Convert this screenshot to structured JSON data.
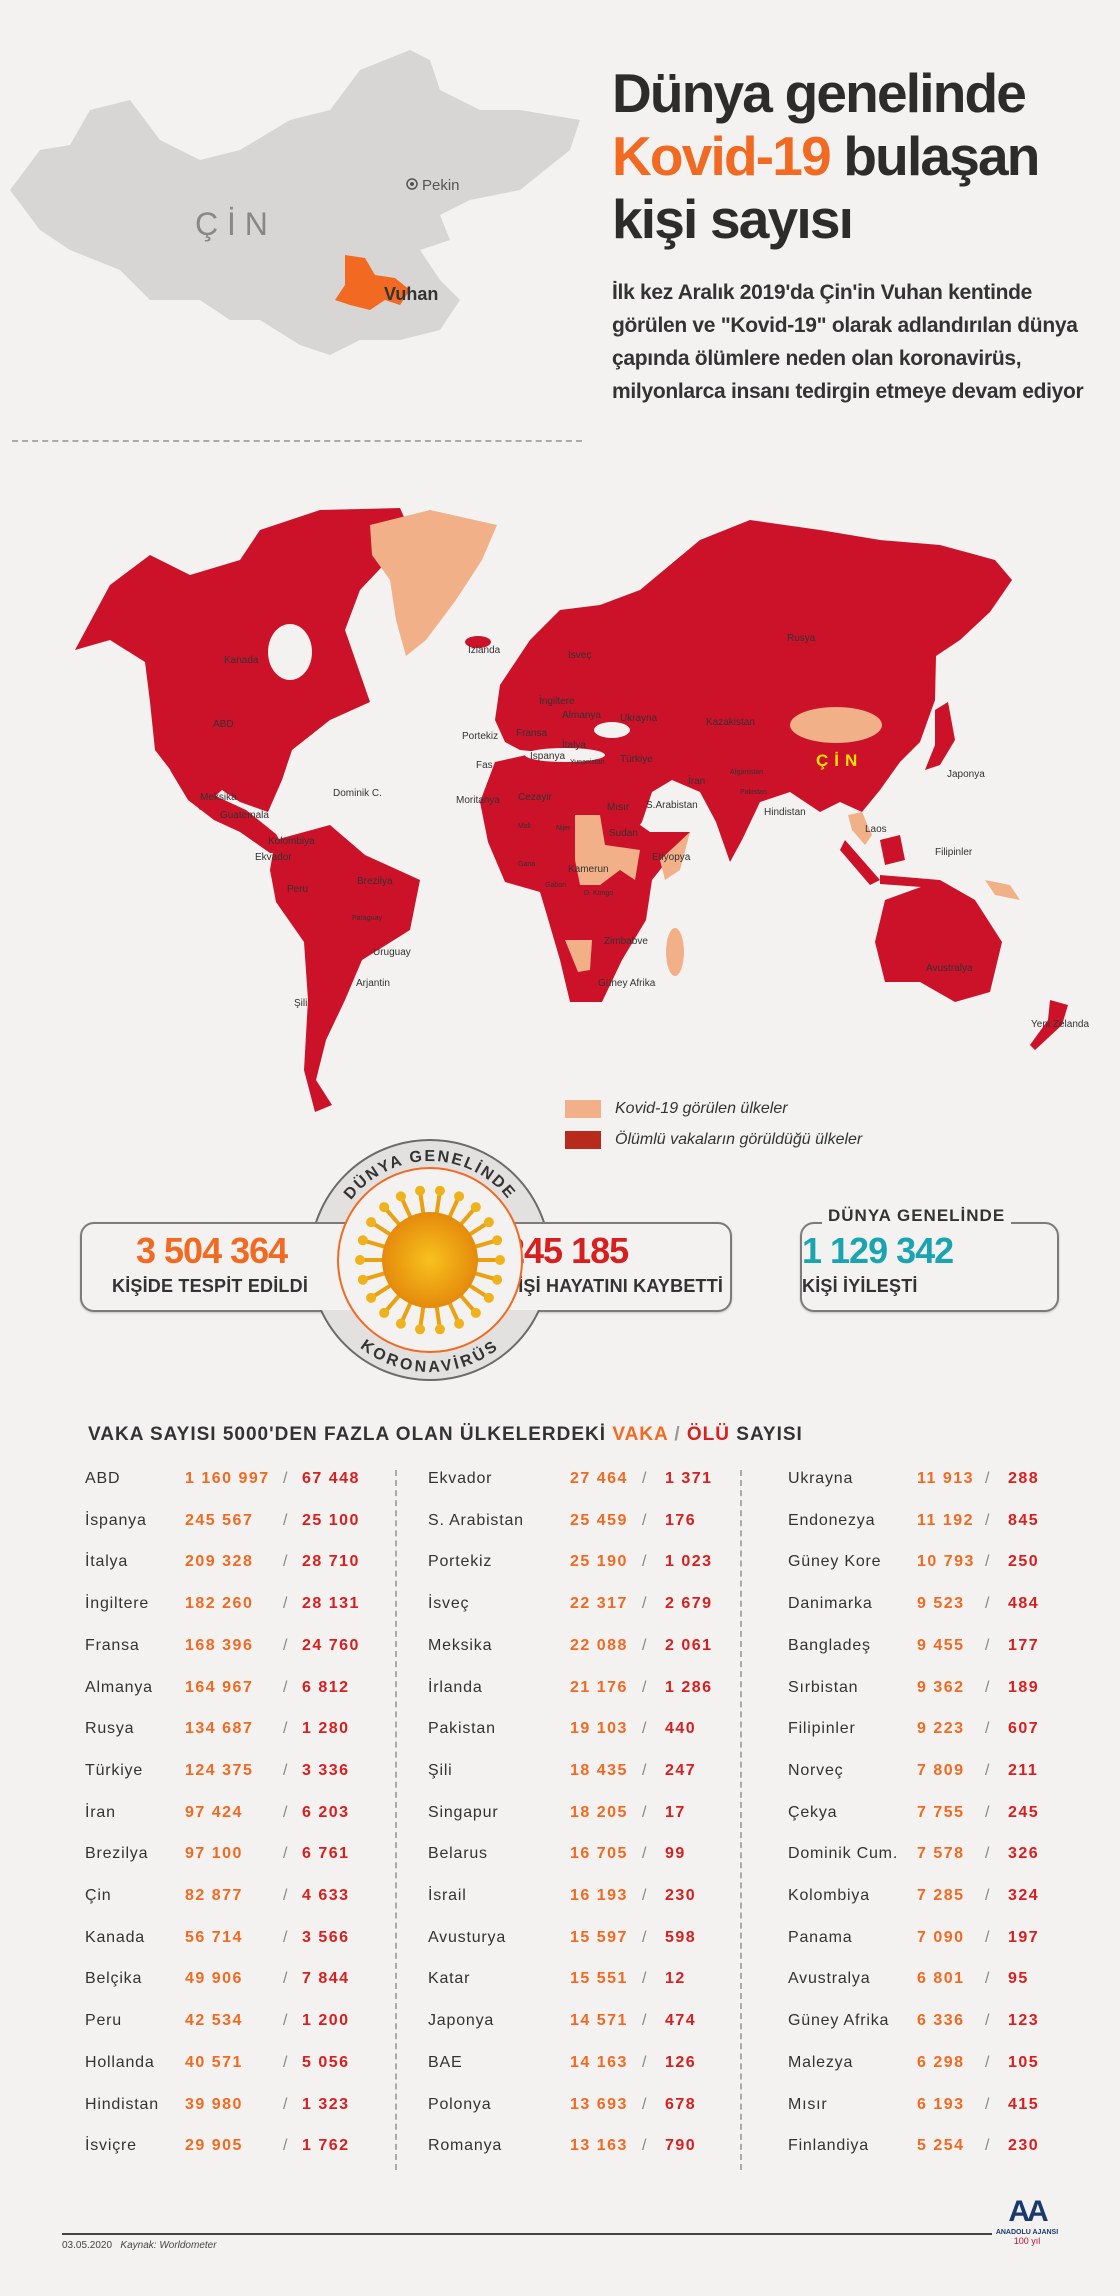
{
  "colors": {
    "death_country": "#cc1229",
    "case_country": "#f2b088",
    "accent_orange": "#f26a21",
    "death_red": "#d81f1f",
    "recovered_teal": "#1aa3b0",
    "china_gray": "#d8d6d4"
  },
  "china_map": {
    "country_label": "Ç İ N",
    "capital_label": "Pekin",
    "city_label": "Vuhan"
  },
  "header": {
    "title_line1": "Dünya genelinde",
    "title_highlight": "Kovid-19",
    "title_line2_rest": " bulaşan",
    "title_line3": "kişi sayısı",
    "intro": "İlk kez Aralık 2019'da Çin'in Vuhan kentinde görülen ve \"Kovid-19\" olarak adlandırılan dünya çapında ölümlere neden olan koronavirüs, milyonlarca insanı tedirgin etmeye devam ediyor"
  },
  "world_map": {
    "labels": [
      "Kanada",
      "ABD",
      "İzlanda",
      "Meksika",
      "Guatemala",
      "Dominik C.",
      "Kolombiya",
      "Ekvador",
      "Peru",
      "Brezilya",
      "Paraguay",
      "Uruguay",
      "Arjantin",
      "Şili",
      "Portekiz",
      "Fas",
      "Moritanya",
      "İngiltere",
      "Fransa",
      "İspanya",
      "Almanya",
      "İsveç",
      "Ukrayna",
      "İtalya",
      "Yunanistan",
      "Türkiye",
      "Cezayir",
      "Mısır",
      "Mali",
      "Nijer",
      "Sudan",
      "Etiyopya",
      "Gana",
      "Kamerun",
      "Gabon",
      "D. Kongo",
      "Zimbabve",
      "Güney Afrika",
      "Rusya",
      "Kazakistan",
      "İran",
      "S.Arabistan",
      "Afganistan",
      "Pakistan",
      "Hindistan",
      "ÇİN",
      "Japonya",
      "Laos",
      "Filipinler",
      "Avustralya",
      "Yeni Zelanda"
    ],
    "legend": [
      {
        "label": "Kovid-19 görülen ülkeler",
        "color": "#f2b088"
      },
      {
        "label": "Ölümlü vakaların görüldüğü ülkeler",
        "color": "#b82a1c"
      }
    ]
  },
  "stats": {
    "ring_top": "DÜNYA GENELİNDE",
    "ring_bottom": "KORONAVİRÜS",
    "cases": "3 504 364",
    "cases_label": "KİŞİDE TESPİT EDİLDİ",
    "deaths": "245 185",
    "deaths_label": "KİŞİ HAYATINI KAYBETTİ",
    "recovered_heading": "DÜNYA GENELİNDE",
    "recovered": "1 129 342",
    "recovered_label": "KİŞİ İYİLEŞTİ"
  },
  "table": {
    "heading_prefix": "VAKA SAYISI 5000'DEN FAZLA OLAN ÜLKELERDEKİ ",
    "heading_cases": "VAKA",
    "heading_sep": " / ",
    "heading_deaths": "ÖLÜ",
    "heading_suffix": " SAYISI",
    "columns": [
      [
        [
          "ABD",
          "1 160 997",
          "67 448"
        ],
        [
          "İspanya",
          "245 567",
          "25 100"
        ],
        [
          "İtalya",
          "209 328",
          "28 710"
        ],
        [
          "İngiltere",
          "182 260",
          "28 131"
        ],
        [
          "Fransa",
          "168 396",
          "24 760"
        ],
        [
          "Almanya",
          "164 967",
          "6 812"
        ],
        [
          "Rusya",
          "134 687",
          "1 280"
        ],
        [
          "Türkiye",
          "124 375",
          "3 336"
        ],
        [
          "İran",
          "97 424",
          "6 203"
        ],
        [
          "Brezilya",
          "97 100",
          "6 761"
        ],
        [
          "Çin",
          "82 877",
          "4 633"
        ],
        [
          "Kanada",
          "56 714",
          "3 566"
        ],
        [
          "Belçika",
          "49 906",
          "7 844"
        ],
        [
          "Peru",
          "42 534",
          "1 200"
        ],
        [
          "Hollanda",
          "40 571",
          "5 056"
        ],
        [
          "Hindistan",
          "39 980",
          "1 323"
        ],
        [
          "İsviçre",
          "29 905",
          "1 762"
        ]
      ],
      [
        [
          "Ekvador",
          "27 464",
          "1 371"
        ],
        [
          "S. Arabistan",
          "25 459",
          "176"
        ],
        [
          "Portekiz",
          "25 190",
          "1 023"
        ],
        [
          "İsveç",
          "22 317",
          "2 679"
        ],
        [
          "Meksika",
          "22 088",
          "2 061"
        ],
        [
          "İrlanda",
          "21 176",
          "1 286"
        ],
        [
          "Pakistan",
          "19 103",
          "440"
        ],
        [
          "Şili",
          "18 435",
          "247"
        ],
        [
          "Singapur",
          "18 205",
          "17"
        ],
        [
          "Belarus",
          "16 705",
          "99"
        ],
        [
          "İsrail",
          "16 193",
          "230"
        ],
        [
          "Avusturya",
          "15 597",
          "598"
        ],
        [
          "Katar",
          "15 551",
          "12"
        ],
        [
          "Japonya",
          "14 571",
          "474"
        ],
        [
          "BAE",
          "14 163",
          "126"
        ],
        [
          "Polonya",
          "13 693",
          "678"
        ],
        [
          "Romanya",
          "13 163",
          "790"
        ]
      ],
      [
        [
          "Ukrayna",
          "11 913",
          "288"
        ],
        [
          "Endonezya",
          "11 192",
          "845"
        ],
        [
          "Güney Kore",
          "10 793",
          "250"
        ],
        [
          "Danimarka",
          "9 523",
          "484"
        ],
        [
          "Bangladeş",
          "9 455",
          "177"
        ],
        [
          "Sırbistan",
          "9 362",
          "189"
        ],
        [
          "Filipinler",
          "9 223",
          "607"
        ],
        [
          "Norveç",
          "7 809",
          "211"
        ],
        [
          "Çekya",
          "7 755",
          "245"
        ],
        [
          "Dominik Cum.",
          "7 578",
          "326"
        ],
        [
          "Kolombiya",
          "7 285",
          "324"
        ],
        [
          "Panama",
          "7 090",
          "197"
        ],
        [
          "Avustralya",
          "6 801",
          "95"
        ],
        [
          "Güney Afrika",
          "6 336",
          "123"
        ],
        [
          "Malezya",
          "6 298",
          "105"
        ],
        [
          "Mısır",
          "6 193",
          "415"
        ],
        [
          "Finlandiya",
          "5 254",
          "230"
        ]
      ]
    ]
  },
  "footer": {
    "date": "03.05.2020",
    "source": "Kaynak: Worldometer",
    "logo_text": "ANADOLU AJANSI",
    "logo_mark": "AA",
    "logo_anniv": "100 yıl"
  }
}
